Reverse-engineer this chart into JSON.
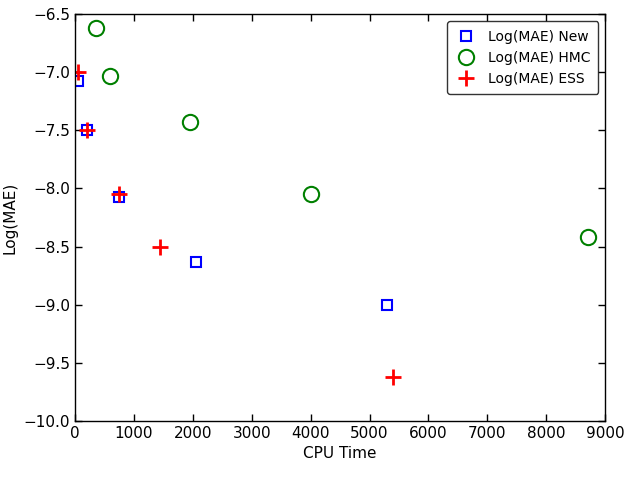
{
  "new_x": [
    50,
    200,
    750,
    2050,
    5300
  ],
  "new_y": [
    -7.07,
    -7.5,
    -8.07,
    -8.63,
    -9.0
  ],
  "hmc_x": [
    350,
    600,
    1950,
    4000,
    8700
  ],
  "hmc_y": [
    -6.62,
    -7.03,
    -7.43,
    -8.05,
    -8.42
  ],
  "ess_x": [
    50,
    200,
    750,
    1450,
    5400
  ],
  "ess_y": [
    -7.0,
    -7.5,
    -8.05,
    -8.5,
    -9.62
  ],
  "xlabel": "CPU Time",
  "ylabel": "Log(MAE)",
  "xlim": [
    0,
    9000
  ],
  "ylim": [
    -10,
    -6.5
  ],
  "yticks": [
    -10,
    -9.5,
    -9,
    -8.5,
    -8,
    -7.5,
    -7,
    -6.5
  ],
  "xticks": [
    0,
    1000,
    2000,
    3000,
    4000,
    5000,
    6000,
    7000,
    8000,
    9000
  ],
  "new_color": "#0000ff",
  "hmc_color": "#008000",
  "ess_color": "#ff0000",
  "legend_labels": [
    "Log(MAE) New",
    "Log(MAE) HMC",
    "Log(MAE) ESS"
  ],
  "figsize": [
    6.24,
    4.78
  ],
  "dpi": 100
}
